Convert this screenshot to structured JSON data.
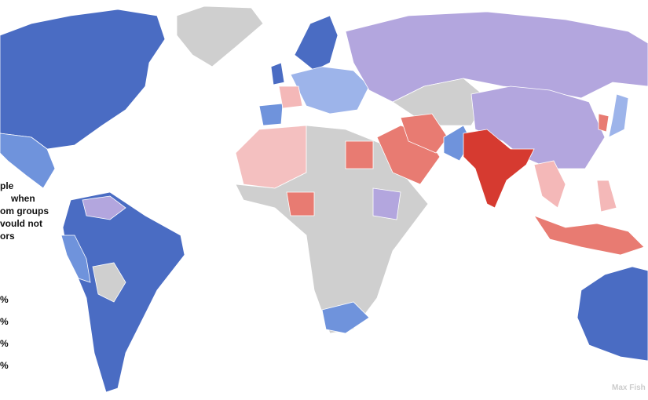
{
  "legend": {
    "title_lines": [
      "ple",
      "when",
      "om groups",
      "vould not",
      "ors"
    ],
    "items": [
      "%",
      "%",
      "%",
      "%"
    ]
  },
  "credit": "Max Fish"
}
